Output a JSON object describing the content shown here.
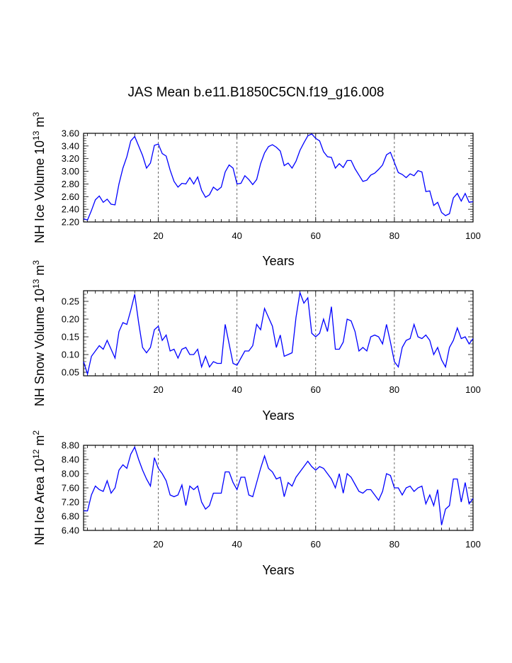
{
  "title": "JAS Mean b.e11.B1850C5CN.f19_g16.008",
  "chart_data": [
    {
      "type": "line",
      "ylabel": "NH Ice Volume 10^13 m^3",
      "ylabel_parts": {
        "base": "NH Ice Volume 10",
        "exp1": "13",
        "mid": " m",
        "exp2": "3"
      },
      "xlabel": "Years",
      "xlim": [
        1,
        100
      ],
      "ylim": [
        2.2,
        3.6
      ],
      "xticks": [
        20,
        40,
        60,
        80,
        100
      ],
      "xtick_labels": [
        "20",
        "40",
        "60",
        "80",
        "100"
      ],
      "yticks": [
        2.2,
        2.4,
        2.6,
        2.8,
        3.0,
        3.2,
        3.4,
        3.6
      ],
      "ytick_labels": [
        "2.20",
        "2.40",
        "2.60",
        "2.80",
        "3.00",
        "3.20",
        "3.40",
        "3.60"
      ],
      "ref_lines": [
        20,
        40,
        60,
        80
      ],
      "color": "#0000ff",
      "values": [
        2.25,
        2.23,
        2.38,
        2.55,
        2.61,
        2.51,
        2.56,
        2.48,
        2.47,
        2.8,
        3.05,
        3.23,
        3.48,
        3.55,
        3.4,
        3.25,
        3.05,
        3.13,
        3.41,
        3.43,
        3.28,
        3.24,
        3.02,
        2.84,
        2.75,
        2.81,
        2.8,
        2.9,
        2.8,
        2.91,
        2.7,
        2.59,
        2.63,
        2.75,
        2.7,
        2.75,
        2.99,
        3.1,
        3.05,
        2.8,
        2.81,
        2.93,
        2.87,
        2.79,
        2.87,
        3.12,
        3.29,
        3.39,
        3.42,
        3.38,
        3.32,
        3.09,
        3.13,
        3.05,
        3.16,
        3.33,
        3.45,
        3.56,
        3.59,
        3.52,
        3.48,
        3.31,
        3.23,
        3.22,
        3.05,
        3.12,
        3.06,
        3.17,
        3.17,
        3.04,
        2.94,
        2.84,
        2.86,
        2.94,
        2.97,
        3.03,
        3.1,
        3.26,
        3.3,
        3.14,
        2.98,
        2.95,
        2.9,
        2.96,
        2.93,
        3.01,
        2.99,
        2.68,
        2.69,
        2.46,
        2.51,
        2.35,
        2.3,
        2.33,
        2.58,
        2.65,
        2.53,
        2.65,
        2.51,
        2.52
      ]
    },
    {
      "type": "line",
      "ylabel": "NH Snow Volume 10^13 m^3",
      "ylabel_parts": {
        "base": "NH Snow Volume 10",
        "exp1": "13",
        "mid": " m",
        "exp2": "3"
      },
      "xlabel": "Years",
      "xlim": [
        1,
        100
      ],
      "ylim": [
        0.04,
        0.28
      ],
      "xticks": [
        20,
        40,
        60,
        80,
        100
      ],
      "xtick_labels": [
        "20",
        "40",
        "60",
        "80",
        "100"
      ],
      "yticks": [
        0.05,
        0.1,
        0.15,
        0.2,
        0.25
      ],
      "ytick_labels": [
        "0.05",
        "0.10",
        "0.15",
        "0.20",
        "0.25"
      ],
      "ref_lines": [
        20,
        40,
        60,
        80
      ],
      "color": "#0000ff",
      "values": [
        0.08,
        0.045,
        0.095,
        0.11,
        0.125,
        0.115,
        0.14,
        0.115,
        0.09,
        0.165,
        0.19,
        0.185,
        0.225,
        0.27,
        0.19,
        0.12,
        0.105,
        0.12,
        0.17,
        0.18,
        0.14,
        0.155,
        0.11,
        0.115,
        0.09,
        0.115,
        0.12,
        0.1,
        0.1,
        0.115,
        0.065,
        0.095,
        0.065,
        0.08,
        0.075,
        0.075,
        0.185,
        0.13,
        0.075,
        0.07,
        0.09,
        0.11,
        0.11,
        0.125,
        0.185,
        0.17,
        0.23,
        0.205,
        0.18,
        0.12,
        0.155,
        0.095,
        0.1,
        0.105,
        0.205,
        0.275,
        0.245,
        0.26,
        0.16,
        0.15,
        0.16,
        0.2,
        0.165,
        0.235,
        0.115,
        0.115,
        0.135,
        0.2,
        0.195,
        0.165,
        0.11,
        0.12,
        0.11,
        0.15,
        0.155,
        0.15,
        0.13,
        0.185,
        0.135,
        0.08,
        0.065,
        0.12,
        0.14,
        0.145,
        0.185,
        0.15,
        0.145,
        0.155,
        0.14,
        0.1,
        0.12,
        0.085,
        0.065,
        0.12,
        0.14,
        0.175,
        0.145,
        0.15,
        0.13,
        0.145
      ]
    },
    {
      "type": "line",
      "ylabel": "NH Ice Area 10^12 m^2",
      "ylabel_parts": {
        "base": "NH Ice Area 10",
        "exp1": "12",
        "mid": " m",
        "exp2": "2"
      },
      "xlabel": "Years",
      "xlim": [
        1,
        100
      ],
      "ylim": [
        6.4,
        8.8
      ],
      "xticks": [
        20,
        40,
        60,
        80,
        100
      ],
      "xtick_labels": [
        "20",
        "40",
        "60",
        "80",
        "100"
      ],
      "yticks": [
        6.4,
        6.8,
        7.2,
        7.6,
        8.0,
        8.4,
        8.8
      ],
      "ytick_labels": [
        "6.40",
        "6.80",
        "7.20",
        "7.60",
        "8.00",
        "8.40",
        "8.80"
      ],
      "ref_lines": [
        20,
        40,
        60,
        80
      ],
      "color": "#0000ff",
      "values": [
        6.95,
        6.95,
        7.4,
        7.65,
        7.55,
        7.5,
        7.8,
        7.45,
        7.6,
        8.1,
        8.25,
        8.15,
        8.55,
        8.75,
        8.4,
        8.1,
        7.85,
        7.65,
        8.45,
        8.15,
        8.0,
        7.8,
        7.4,
        7.35,
        7.4,
        7.68,
        7.1,
        7.65,
        7.55,
        7.65,
        7.2,
        7.0,
        7.1,
        7.45,
        7.45,
        7.45,
        8.05,
        8.05,
        7.75,
        7.55,
        7.9,
        7.9,
        7.4,
        7.35,
        7.75,
        8.15,
        8.5,
        8.15,
        8.05,
        7.85,
        7.9,
        7.35,
        7.75,
        7.65,
        7.9,
        8.05,
        8.2,
        8.35,
        8.2,
        8.1,
        8.2,
        8.15,
        8.0,
        7.85,
        7.6,
        8.0,
        7.45,
        8.0,
        7.9,
        7.7,
        7.5,
        7.45,
        7.55,
        7.55,
        7.4,
        7.25,
        7.5,
        8.0,
        7.95,
        7.6,
        7.6,
        7.4,
        7.6,
        7.65,
        7.5,
        7.6,
        7.65,
        7.15,
        7.4,
        7.1,
        7.55,
        6.55,
        7.0,
        7.1,
        7.85,
        7.85,
        7.2,
        7.75,
        7.15,
        7.3
      ]
    }
  ]
}
